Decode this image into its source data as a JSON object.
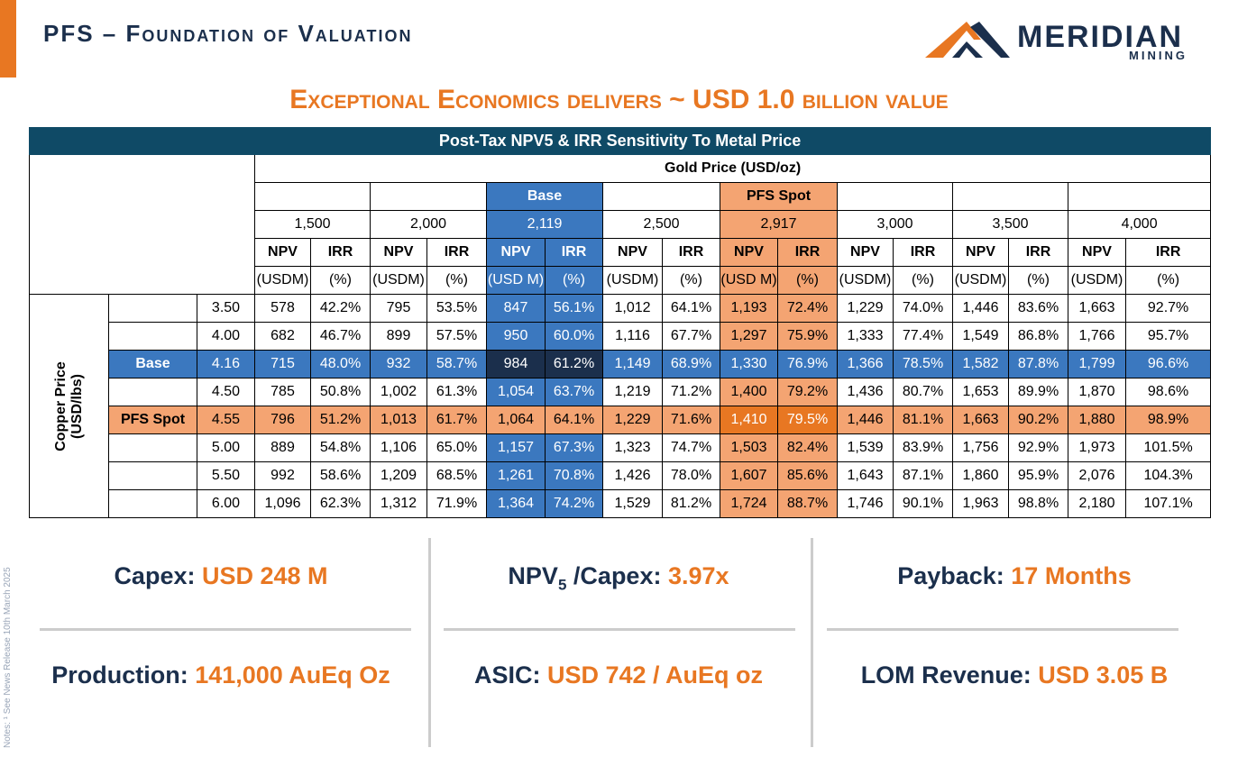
{
  "header": {
    "title": "PFS – Foundation of Valuation",
    "logo_name": "MERIDIAN",
    "logo_sub": "MINING"
  },
  "headline": "Exceptional Economics delivers ~ USD 1.0 billion value",
  "side_note": "Notes: ¹ See News Release 10th March 2025",
  "table": {
    "title": "Post-Tax NPV5 & IRR Sensitivity To Metal Price",
    "gold_header": "Gold Price (USD/oz)",
    "copper_header_line1": "Copper Price",
    "copper_header_line2": "(USD/lbs)",
    "base_label": "Base",
    "spot_label": "PFS Spot",
    "gold_prices": [
      "1,500",
      "2,000",
      "2,119",
      "2,500",
      "2,917",
      "3,000",
      "3,500",
      "4,000"
    ],
    "npv_label": "NPV",
    "irr_label": "IRR",
    "units": [
      "(USDM)",
      "(%)",
      "(USDM)",
      "(%)",
      "(USD M)",
      "(%)",
      "(USDM)",
      "(%)",
      "(USD M)",
      "(%)",
      "(USDM)",
      "(%)",
      "(USDM)",
      "(%)",
      "(USDM)",
      "(%)"
    ],
    "rows": [
      {
        "label": "",
        "cu": "3.50",
        "cells": [
          "578",
          "42.2%",
          "795",
          "53.5%",
          "847",
          "56.1%",
          "1,012",
          "64.1%",
          "1,193",
          "72.4%",
          "1,229",
          "74.0%",
          "1,446",
          "83.6%",
          "1,663",
          "92.7%"
        ]
      },
      {
        "label": "",
        "cu": "4.00",
        "cells": [
          "682",
          "46.7%",
          "899",
          "57.5%",
          "950",
          "60.0%",
          "1,116",
          "67.7%",
          "1,297",
          "75.9%",
          "1,333",
          "77.4%",
          "1,549",
          "86.8%",
          "1,766",
          "95.7%"
        ]
      },
      {
        "label": "Base",
        "cu": "4.16",
        "cells": [
          "715",
          "48.0%",
          "932",
          "58.7%",
          "984",
          "61.2%",
          "1,149",
          "68.9%",
          "1,330",
          "76.9%",
          "1,366",
          "78.5%",
          "1,582",
          "87.8%",
          "1,799",
          "96.6%"
        ]
      },
      {
        "label": "",
        "cu": "4.50",
        "cells": [
          "785",
          "50.8%",
          "1,002",
          "61.3%",
          "1,054",
          "63.7%",
          "1,219",
          "71.2%",
          "1,400",
          "79.2%",
          "1,436",
          "80.7%",
          "1,653",
          "89.9%",
          "1,870",
          "98.6%"
        ]
      },
      {
        "label": "PFS Spot",
        "cu": "4.55",
        "cells": [
          "796",
          "51.2%",
          "1,013",
          "61.7%",
          "1,064",
          "64.1%",
          "1,229",
          "71.6%",
          "1,410",
          "79.5%",
          "1,446",
          "81.1%",
          "1,663",
          "90.2%",
          "1,880",
          "98.9%"
        ]
      },
      {
        "label": "",
        "cu": "5.00",
        "cells": [
          "889",
          "54.8%",
          "1,106",
          "65.0%",
          "1,157",
          "67.3%",
          "1,323",
          "74.7%",
          "1,503",
          "82.4%",
          "1,539",
          "83.9%",
          "1,756",
          "92.9%",
          "1,973",
          "101.5%"
        ]
      },
      {
        "label": "",
        "cu": "5.50",
        "cells": [
          "992",
          "58.6%",
          "1,209",
          "68.5%",
          "1,261",
          "70.8%",
          "1,426",
          "78.0%",
          "1,607",
          "85.6%",
          "1,643",
          "87.1%",
          "1,860",
          "95.9%",
          "2,076",
          "104.3%"
        ]
      },
      {
        "label": "",
        "cu": "6.00",
        "cells": [
          "1,096",
          "62.3%",
          "1,312",
          "71.9%",
          "1,364",
          "74.2%",
          "1,529",
          "81.2%",
          "1,724",
          "88.7%",
          "1,746",
          "90.1%",
          "1,963",
          "98.8%",
          "2,180",
          "107.1%"
        ]
      }
    ]
  },
  "metrics": {
    "capex": {
      "label": "Capex:",
      "value": "USD 248 M"
    },
    "npv_capex": {
      "label_main": "NPV",
      "label_sub": "5",
      "label_rest": " /Capex:",
      "value": "3.97x"
    },
    "payback": {
      "label": "Payback:",
      "value": "17 Months"
    },
    "production": {
      "label": "Production:",
      "value": "141,000 AuEq Oz"
    },
    "asic": {
      "label": "ASIC:",
      "value": "USD 742 / AuEq oz"
    },
    "lom_revenue": {
      "label": "LOM Revenue:",
      "value": "USD 3.05 B"
    }
  },
  "colors": {
    "navy": "#1b2f4c",
    "teal_header": "#0f4a66",
    "accent_orange": "#e87722",
    "light_orange": "#f4a472",
    "blue": "#3b78bf"
  }
}
